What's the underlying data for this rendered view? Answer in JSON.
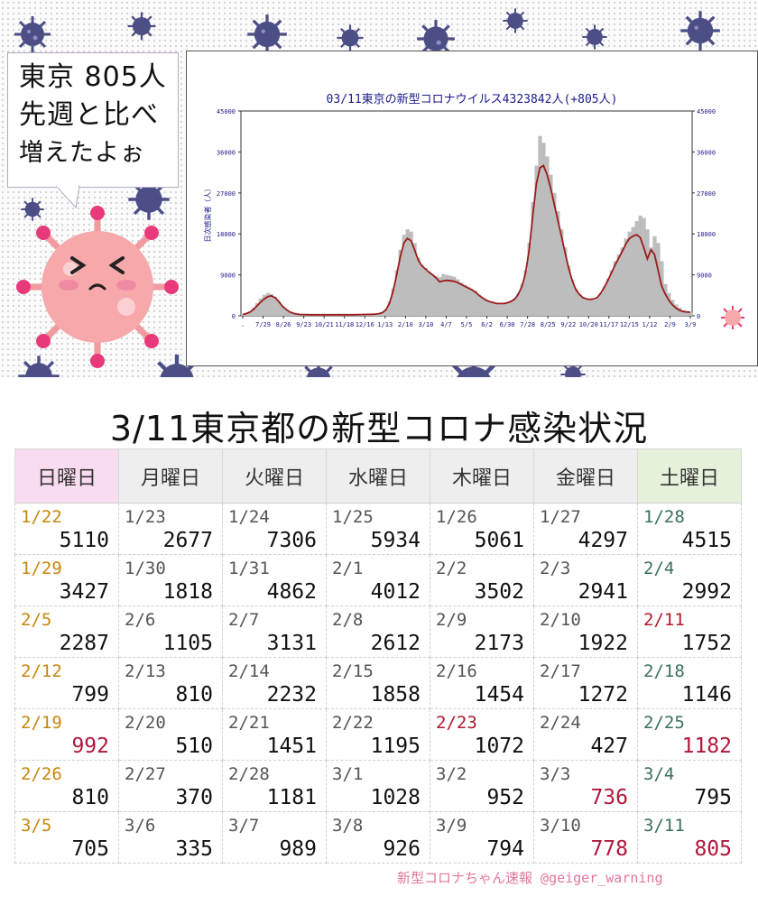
{
  "speech": {
    "line1": "東京 805人",
    "line2": "先週と比べ",
    "line3": "増えたよぉ"
  },
  "chart_data": {
    "type": "area",
    "title": "03/11東京の新型コロナウイルス4323842人(+805人)",
    "ylabel": "日次感染者（人）",
    "ylim": [
      0,
      45000
    ],
    "yticks": [
      "45000",
      "36000",
      "27000",
      "18000",
      "9000",
      "0"
    ],
    "ytick_values": [
      45000,
      36000,
      27000,
      18000,
      9000,
      0
    ],
    "xticks": [
      ".",
      "7/29",
      "8/26",
      "9/23",
      "10/21",
      "11/18",
      "12/16",
      "1/13",
      "2/10",
      "3/10",
      "4/7",
      "5/5",
      "6/2",
      "6/30",
      "7/28",
      "8/25",
      "9/22",
      "10/20",
      "11/17",
      "12/15",
      "1/12",
      "2/9",
      "3/9"
    ],
    "series": [
      {
        "style": "bars",
        "color": "#bdbdbd",
        "values": [
          300,
          600,
          1000,
          1800,
          2800,
          3800,
          4600,
          5000,
          4800,
          4200,
          3200,
          2200,
          1400,
          800,
          500,
          350,
          300,
          280,
          250,
          240,
          230,
          230,
          230,
          230,
          230,
          230,
          230,
          230,
          230,
          230,
          230,
          240,
          260,
          280,
          300,
          320,
          350,
          400,
          500,
          800,
          1500,
          3200,
          6000,
          10000,
          14500,
          17800,
          19000,
          18500,
          16000,
          12800,
          11200,
          10500,
          9800,
          9200,
          8800,
          8500,
          9200,
          9000,
          8800,
          8600,
          8000,
          7300,
          6800,
          6300,
          5800,
          5500,
          4600,
          4000,
          3500,
          3200,
          3000,
          2800,
          2700,
          2800,
          3000,
          3300,
          3800,
          5000,
          7000,
          10000,
          16000,
          25000,
          33000,
          39500,
          38000,
          35000,
          31000,
          27000,
          23000,
          19000,
          15000,
          11000,
          8000,
          6000,
          4800,
          4000,
          3800,
          3600,
          3500,
          4000,
          5000,
          6500,
          8200,
          10000,
          12000,
          13500,
          15000,
          17000,
          18500,
          19500,
          20800,
          22000,
          21500,
          19000,
          15000,
          17500,
          16000,
          12000,
          7000,
          5000,
          3500,
          2500,
          1800,
          1200,
          900,
          800
        ]
      },
      {
        "style": "line",
        "color": "#9b1c1c",
        "values": [
          300,
          500,
          800,
          1400,
          2200,
          3000,
          3700,
          4200,
          4400,
          4000,
          3200,
          2200,
          1500,
          900,
          600,
          400,
          300,
          280,
          250,
          240,
          230,
          230,
          230,
          230,
          230,
          230,
          230,
          230,
          230,
          230,
          230,
          240,
          260,
          280,
          300,
          320,
          340,
          380,
          480,
          700,
          1300,
          2800,
          5500,
          9000,
          13000,
          16000,
          17000,
          16500,
          14500,
          12300,
          11000,
          10300,
          9600,
          9000,
          8300,
          7500,
          7700,
          7800,
          7700,
          7600,
          7300,
          6900,
          6500,
          6100,
          5700,
          5200,
          4500,
          3900,
          3400,
          3100,
          2900,
          2700,
          2700,
          2700,
          2900,
          3200,
          3700,
          4800,
          6500,
          9500,
          14500,
          22000,
          29000,
          32500,
          33000,
          31000,
          28000,
          24500,
          21000,
          17500,
          14000,
          10500,
          7800,
          5800,
          4700,
          4000,
          3700,
          3600,
          3700,
          4000,
          5000,
          6300,
          7800,
          9500,
          11200,
          12700,
          14200,
          15800,
          17000,
          17500,
          17800,
          17200,
          15000,
          12500,
          14500,
          13500,
          10000,
          6500,
          4800,
          3400,
          2400,
          1700,
          1200,
          950,
          850,
          800
        ]
      }
    ]
  },
  "table": {
    "title": "3/11東京都の新型コロナ感染状況",
    "headers": [
      "日曜日",
      "月曜日",
      "火曜日",
      "水曜日",
      "木曜日",
      "金曜日",
      "土曜日"
    ],
    "rows": [
      [
        {
          "date": "1/22",
          "value": "5110"
        },
        {
          "date": "1/23",
          "value": "2677"
        },
        {
          "date": "1/24",
          "value": "7306"
        },
        {
          "date": "1/25",
          "value": "5934"
        },
        {
          "date": "1/26",
          "value": "5061"
        },
        {
          "date": "1/27",
          "value": "4297"
        },
        {
          "date": "1/28",
          "value": "4515"
        }
      ],
      [
        {
          "date": "1/29",
          "value": "3427"
        },
        {
          "date": "1/30",
          "value": "1818"
        },
        {
          "date": "1/31",
          "value": "4862"
        },
        {
          "date": "2/1",
          "value": "4012"
        },
        {
          "date": "2/2",
          "value": "3502"
        },
        {
          "date": "2/3",
          "value": "2941"
        },
        {
          "date": "2/4",
          "value": "2992"
        }
      ],
      [
        {
          "date": "2/5",
          "value": "2287"
        },
        {
          "date": "2/6",
          "value": "1105"
        },
        {
          "date": "2/7",
          "value": "3131"
        },
        {
          "date": "2/8",
          "value": "2612"
        },
        {
          "date": "2/9",
          "value": "2173"
        },
        {
          "date": "2/10",
          "value": "1922"
        },
        {
          "date": "2/11",
          "value": "1752",
          "holiday": true
        }
      ],
      [
        {
          "date": "2/12",
          "value": "799"
        },
        {
          "date": "2/13",
          "value": "810"
        },
        {
          "date": "2/14",
          "value": "2232"
        },
        {
          "date": "2/15",
          "value": "1858"
        },
        {
          "date": "2/16",
          "value": "1454"
        },
        {
          "date": "2/17",
          "value": "1272"
        },
        {
          "date": "2/18",
          "value": "1146"
        }
      ],
      [
        {
          "date": "2/19",
          "value": "992",
          "red": true
        },
        {
          "date": "2/20",
          "value": "510"
        },
        {
          "date": "2/21",
          "value": "1451"
        },
        {
          "date": "2/22",
          "value": "1195"
        },
        {
          "date": "2/23",
          "value": "1072",
          "holiday": true
        },
        {
          "date": "2/24",
          "value": "427"
        },
        {
          "date": "2/25",
          "value": "1182",
          "red": true
        }
      ],
      [
        {
          "date": "2/26",
          "value": "810"
        },
        {
          "date": "2/27",
          "value": "370"
        },
        {
          "date": "2/28",
          "value": "1181"
        },
        {
          "date": "3/1",
          "value": "1028"
        },
        {
          "date": "3/2",
          "value": "952"
        },
        {
          "date": "3/3",
          "value": "736",
          "red": true
        },
        {
          "date": "3/4",
          "value": "795"
        }
      ],
      [
        {
          "date": "3/5",
          "value": "705"
        },
        {
          "date": "3/6",
          "value": "335"
        },
        {
          "date": "3/7",
          "value": "989"
        },
        {
          "date": "3/8",
          "value": "926"
        },
        {
          "date": "3/9",
          "value": "794"
        },
        {
          "date": "3/10",
          "value": "778",
          "red": true
        },
        {
          "date": "3/11",
          "value": "805",
          "red": true
        }
      ]
    ]
  },
  "credit": "新型コロナちゃん速報  @geiger_warning",
  "colors": {
    "virus": "#4b4f86",
    "mascot": "#f5a6a8",
    "bars": "#bdbdbd",
    "line": "#9b1c1c",
    "red_value": "#b0183a",
    "sunday_date": "#c8860c"
  }
}
